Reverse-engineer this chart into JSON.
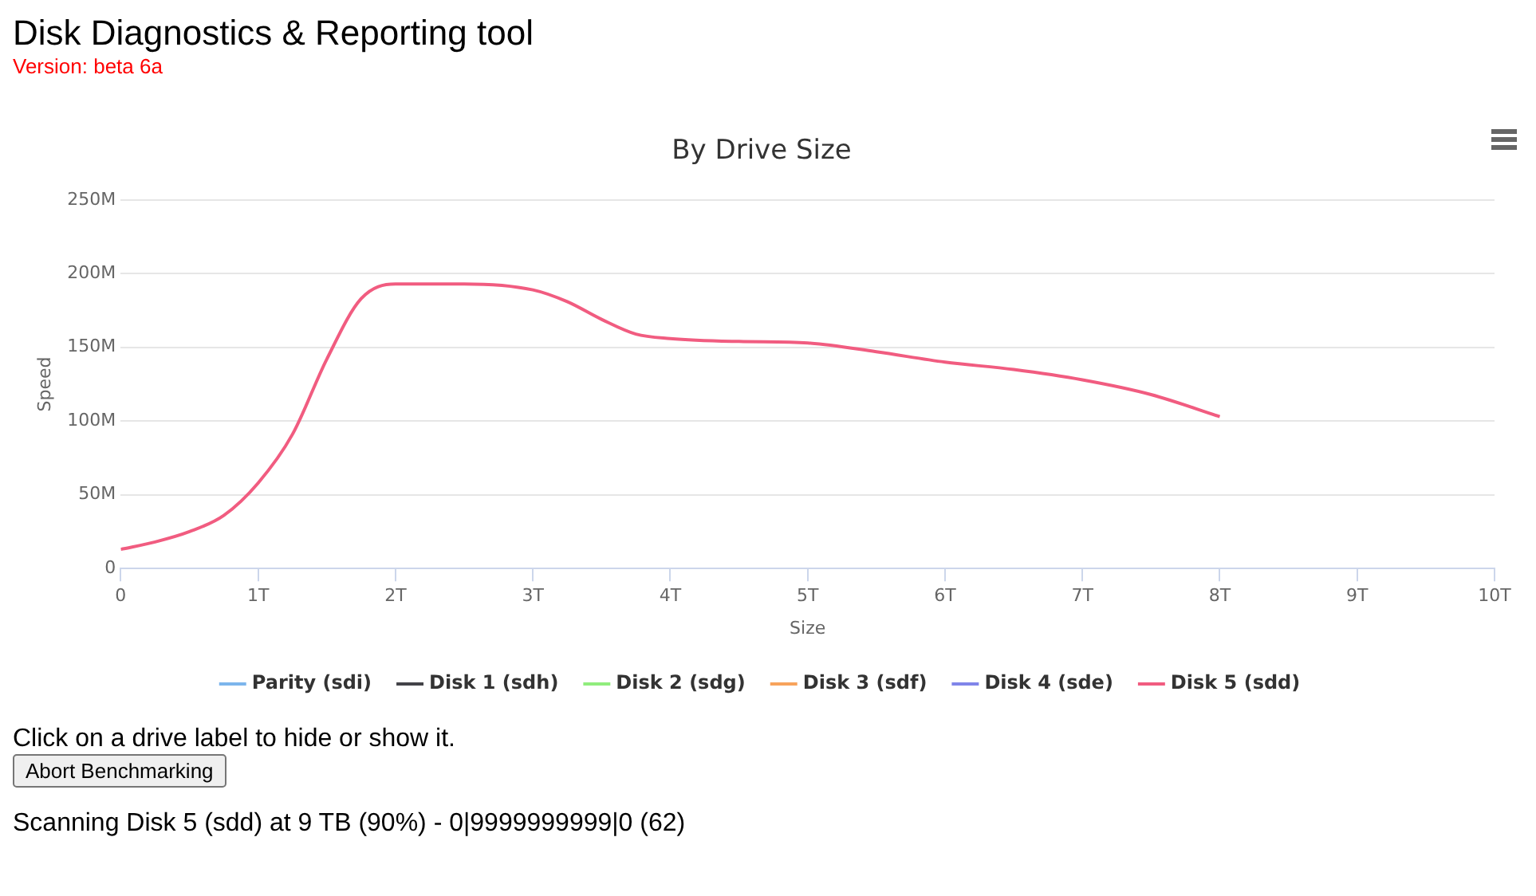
{
  "chart_data": {
    "type": "line",
    "title": "By Drive Size",
    "xlabel": "Size",
    "ylabel": "Speed",
    "annotations": [
      "Disk Diagnostics & Reporting tool",
      "Version: beta 6a",
      "Click on a drive label to hide or show it.",
      "Abort Benchmarking",
      "Scanning Disk 5 (sdd) at 9 TB (90%) - 0|9999999999|0 (62)"
    ],
    "xlim": [
      0,
      10
    ],
    "xticks": [
      0,
      {
        "value": 1,
        "label": "1T"
      },
      {
        "value": 2,
        "label": "2T"
      },
      {
        "value": 3,
        "label": "3T"
      },
      {
        "value": 4,
        "label": "4T"
      },
      {
        "value": 5,
        "label": "5T"
      },
      {
        "value": 6,
        "label": "6T"
      },
      {
        "value": 7,
        "label": "7T"
      },
      {
        "value": 8,
        "label": "8T"
      },
      {
        "value": 9,
        "label": "9T"
      },
      {
        "value": 10,
        "label": "10T"
      }
    ],
    "ylim": [
      0,
      250
    ],
    "yticks": [
      0,
      {
        "value": 50,
        "label": "50M"
      },
      {
        "value": 100,
        "label": "100M"
      },
      {
        "value": 150,
        "label": "150M"
      },
      {
        "value": 200,
        "label": "200M"
      },
      {
        "value": 250,
        "label": "250M"
      }
    ],
    "grid": "y",
    "legend": "bottom",
    "marker": "none",
    "line_style": "solid",
    "series": [
      {
        "name": "Parity (sdi)",
        "color": "#7cb5ec"
      },
      {
        "name": "Disk 1 (sdh)",
        "color": "#434348"
      },
      {
        "name": "Disk 2 (sdg)",
        "color": "#90ed7d"
      },
      {
        "name": "Disk 3 (sdf)",
        "color": "#f7a35c"
      },
      {
        "name": "Disk 4 (sde)",
        "color": "#8085e9"
      },
      {
        "name": "Disk 5 (sdd)",
        "color": "#f15c80",
        "x": [
          0,
          0.25,
          0.5,
          0.75,
          1,
          1.25,
          1.5,
          1.75,
          2,
          2.5,
          3,
          3.25,
          3.5,
          3.75,
          4,
          4.5,
          5,
          5.5,
          6,
          6.5,
          7,
          7.5,
          8
        ],
        "values": [
          13,
          18,
          25,
          36,
          58,
          91,
          142,
          183,
          193,
          193,
          189,
          181,
          169,
          159,
          156,
          154,
          153,
          147,
          140,
          135,
          128,
          118,
          103
        ]
      }
    ]
  }
}
